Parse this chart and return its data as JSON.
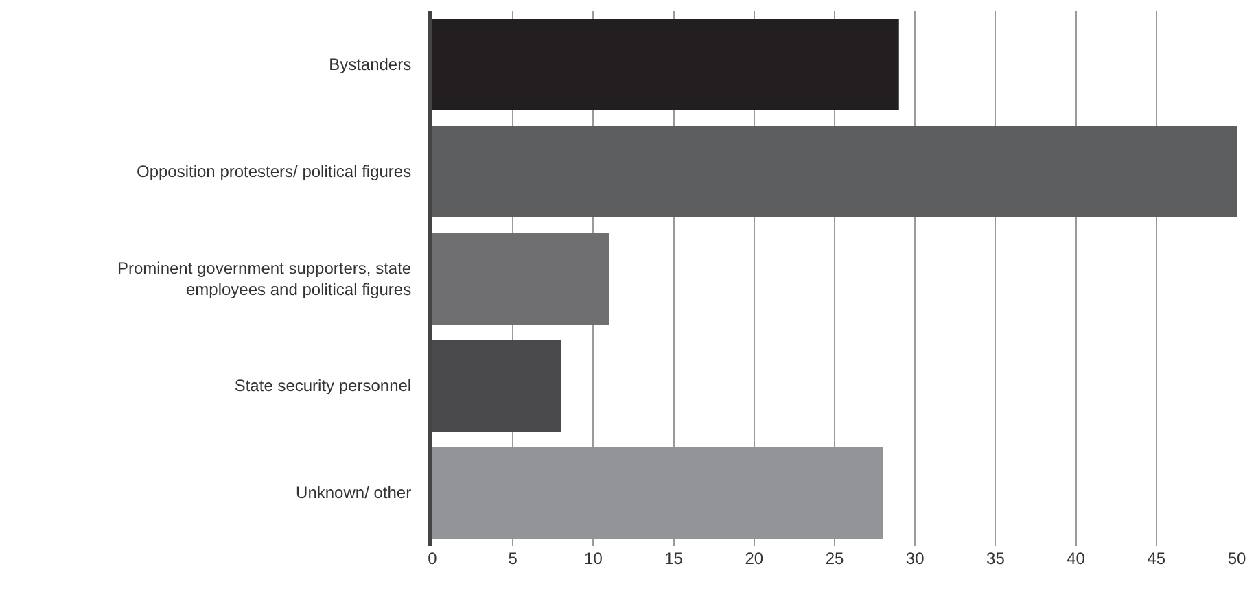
{
  "chart_data": {
    "type": "bar",
    "orientation": "horizontal",
    "categories": [
      "Bystanders",
      "Opposition protesters/ political figures",
      "Prominent government supporters, state\nemployees and political figures",
      "State security personnel",
      "Unknown/ other"
    ],
    "values": [
      29,
      50,
      11,
      8,
      28
    ],
    "colors": [
      "#231f20",
      "#5d5e60",
      "#6f6f71",
      "#4a4a4c",
      "#939497"
    ],
    "xlim": [
      0,
      50
    ],
    "xticks": [
      0,
      5,
      10,
      15,
      20,
      25,
      30,
      35,
      40,
      45,
      50
    ],
    "grid": "x",
    "legend": false
  }
}
